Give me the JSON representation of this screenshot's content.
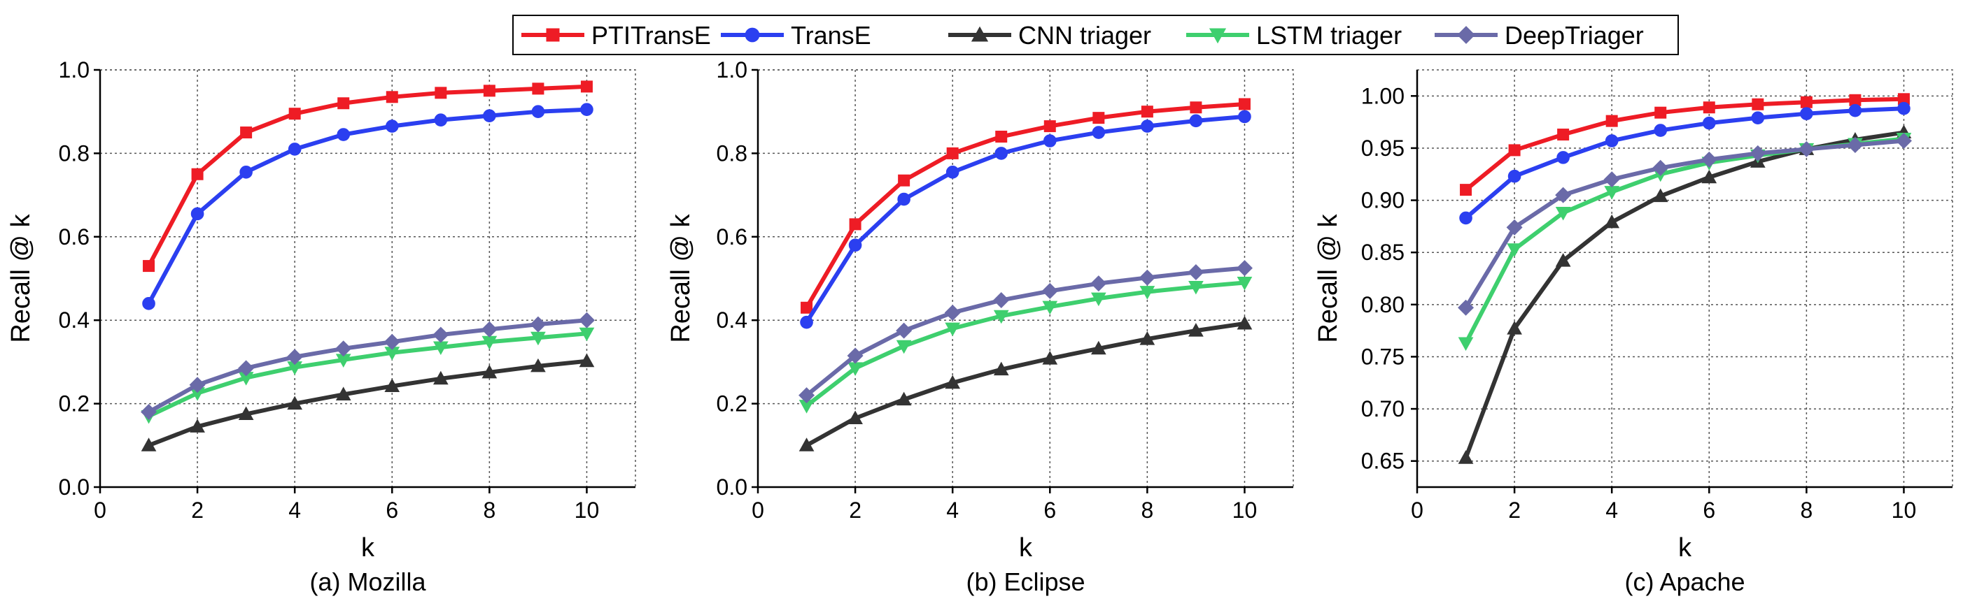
{
  "legend": {
    "placement": "top-center",
    "entries": [
      {
        "name": "PTITransE",
        "color": "#ee1c25",
        "marker": "square"
      },
      {
        "name": "TransE",
        "color": "#2b3ff0",
        "marker": "circle"
      },
      {
        "name": "CNN triager",
        "color": "#333333",
        "marker": "triangle-up"
      },
      {
        "name": "LSTM triager",
        "color": "#3ecf6e",
        "marker": "triangle-down"
      },
      {
        "name": "DeepTriager",
        "color": "#6a6aa8",
        "marker": "diamond"
      }
    ]
  },
  "chart_data": [
    {
      "type": "line",
      "title": "(a) Mozilla",
      "xlabel": "k",
      "ylabel": "Recall @ k",
      "xlim": [
        0,
        11
      ],
      "ylim": [
        0,
        1.0
      ],
      "xticks": [
        0,
        2,
        4,
        6,
        8,
        10
      ],
      "yticks": [
        0.0,
        0.2,
        0.4,
        0.6,
        0.8,
        1.0
      ],
      "ytick_labels": [
        "0.0",
        "0.2",
        "0.4",
        "0.6",
        "0.8",
        "1.0"
      ],
      "grid": true,
      "x": [
        1,
        2,
        3,
        4,
        5,
        6,
        7,
        8,
        9,
        10
      ],
      "series": [
        {
          "name": "PTITransE",
          "values": [
            0.53,
            0.75,
            0.85,
            0.895,
            0.92,
            0.935,
            0.945,
            0.95,
            0.955,
            0.96
          ]
        },
        {
          "name": "TransE",
          "values": [
            0.44,
            0.655,
            0.755,
            0.81,
            0.845,
            0.865,
            0.88,
            0.89,
            0.9,
            0.905
          ]
        },
        {
          "name": "CNN triager",
          "values": [
            0.1,
            0.145,
            0.175,
            0.2,
            0.222,
            0.242,
            0.26,
            0.275,
            0.29,
            0.302
          ]
        },
        {
          "name": "LSTM triager",
          "values": [
            0.17,
            0.225,
            0.262,
            0.287,
            0.305,
            0.322,
            0.335,
            0.348,
            0.358,
            0.368
          ]
        },
        {
          "name": "DeepTriager",
          "values": [
            0.18,
            0.245,
            0.285,
            0.312,
            0.332,
            0.348,
            0.365,
            0.378,
            0.39,
            0.4
          ]
        }
      ]
    },
    {
      "type": "line",
      "title": "(b) Eclipse",
      "xlabel": "k",
      "ylabel": "Recall @ k",
      "xlim": [
        0,
        11
      ],
      "ylim": [
        0,
        1.0
      ],
      "xticks": [
        0,
        2,
        4,
        6,
        8,
        10
      ],
      "yticks": [
        0.0,
        0.2,
        0.4,
        0.6,
        0.8,
        1.0
      ],
      "ytick_labels": [
        "0.0",
        "0.2",
        "0.4",
        "0.6",
        "0.8",
        "1.0"
      ],
      "grid": true,
      "x": [
        1,
        2,
        3,
        4,
        5,
        6,
        7,
        8,
        9,
        10
      ],
      "series": [
        {
          "name": "PTITransE",
          "values": [
            0.43,
            0.63,
            0.735,
            0.8,
            0.84,
            0.865,
            0.885,
            0.9,
            0.91,
            0.918
          ]
        },
        {
          "name": "TransE",
          "values": [
            0.395,
            0.58,
            0.69,
            0.755,
            0.8,
            0.83,
            0.85,
            0.865,
            0.878,
            0.888
          ]
        },
        {
          "name": "CNN triager",
          "values": [
            0.1,
            0.165,
            0.21,
            0.25,
            0.282,
            0.308,
            0.332,
            0.355,
            0.375,
            0.392
          ]
        },
        {
          "name": "LSTM triager",
          "values": [
            0.195,
            0.285,
            0.338,
            0.38,
            0.41,
            0.432,
            0.452,
            0.468,
            0.48,
            0.49
          ]
        },
        {
          "name": "DeepTriager",
          "values": [
            0.22,
            0.315,
            0.375,
            0.418,
            0.448,
            0.47,
            0.488,
            0.502,
            0.515,
            0.525
          ]
        }
      ]
    },
    {
      "type": "line",
      "title": "(c) Apache",
      "xlabel": "k",
      "ylabel": "Recall @ k",
      "xlim": [
        0,
        11
      ],
      "ylim": [
        0.625,
        1.025
      ],
      "xticks": [
        0,
        2,
        4,
        6,
        8,
        10
      ],
      "yticks": [
        0.65,
        0.7,
        0.75,
        0.8,
        0.85,
        0.9,
        0.95,
        1.0
      ],
      "ytick_labels": [
        "0.65",
        "0.70",
        "0.75",
        "0.80",
        "0.85",
        "0.90",
        "0.95",
        "1.00"
      ],
      "grid": true,
      "x": [
        1,
        2,
        3,
        4,
        5,
        6,
        7,
        8,
        9,
        10
      ],
      "series": [
        {
          "name": "PTITransE",
          "values": [
            0.91,
            0.948,
            0.963,
            0.976,
            0.984,
            0.989,
            0.992,
            0.994,
            0.996,
            0.997
          ]
        },
        {
          "name": "TransE",
          "values": [
            0.883,
            0.923,
            0.941,
            0.957,
            0.967,
            0.974,
            0.979,
            0.983,
            0.986,
            0.988
          ]
        },
        {
          "name": "CNN triager",
          "values": [
            0.653,
            0.777,
            0.842,
            0.879,
            0.904,
            0.922,
            0.937,
            0.949,
            0.958,
            0.965
          ]
        },
        {
          "name": "LSTM triager",
          "values": [
            0.763,
            0.853,
            0.888,
            0.908,
            0.925,
            0.936,
            0.943,
            0.949,
            0.954,
            0.959
          ]
        },
        {
          "name": "DeepTriager",
          "values": [
            0.797,
            0.874,
            0.905,
            0.92,
            0.931,
            0.939,
            0.945,
            0.949,
            0.953,
            0.957
          ]
        }
      ]
    }
  ]
}
